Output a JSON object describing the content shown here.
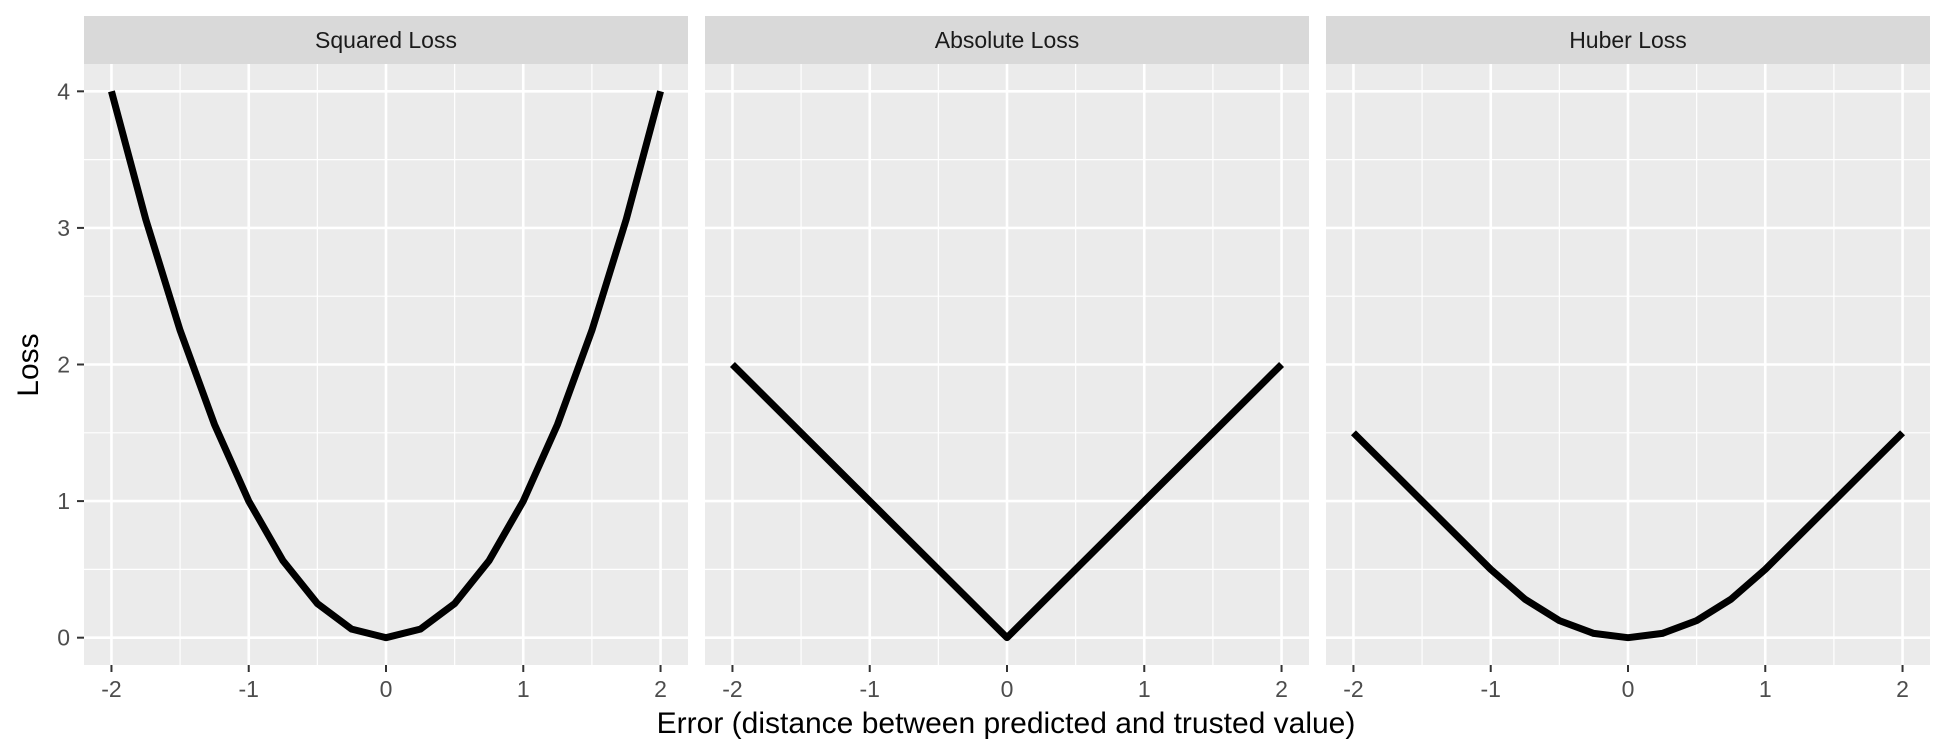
{
  "chart_data": {
    "type": "line",
    "xlabel": "Error (distance between predicted and trusted value)",
    "ylabel": "Loss",
    "x_ticks": [
      -2,
      -1,
      0,
      1,
      2
    ],
    "y_ticks": [
      0,
      1,
      2,
      3,
      4
    ],
    "xlim": [
      -2.2,
      2.2
    ],
    "ylim": [
      -0.2,
      4.2
    ],
    "grid": true,
    "legend": "none",
    "colors": {
      "panel_background": "#ebebeb",
      "strip_background": "#d9d9d9",
      "grid": "#ffffff",
      "line": "#000000"
    },
    "panels": [
      {
        "title": "Squared Loss",
        "x": [
          -2,
          -1.75,
          -1.5,
          -1.25,
          -1,
          -0.75,
          -0.5,
          -0.25,
          0,
          0.25,
          0.5,
          0.75,
          1,
          1.25,
          1.5,
          1.75,
          2
        ],
        "y": [
          4,
          3.0625,
          2.25,
          1.5625,
          1,
          0.5625,
          0.25,
          0.0625,
          0,
          0.0625,
          0.25,
          0.5625,
          1,
          1.5625,
          2.25,
          3.0625,
          4
        ]
      },
      {
        "title": "Absolute Loss",
        "x": [
          -2,
          -1,
          0,
          1,
          2
        ],
        "y": [
          2,
          1,
          0,
          1,
          2
        ]
      },
      {
        "title": "Huber Loss",
        "x": [
          -2,
          -1.75,
          -1.5,
          -1.25,
          -1,
          -0.75,
          -0.5,
          -0.25,
          0,
          0.25,
          0.5,
          0.75,
          1,
          1.25,
          1.5,
          1.75,
          2
        ],
        "y": [
          1.5,
          1.25,
          1,
          0.75,
          0.5,
          0.28125,
          0.125,
          0.03125,
          0,
          0.03125,
          0.125,
          0.28125,
          0.5,
          0.75,
          1,
          1.25,
          1.5
        ]
      }
    ]
  }
}
